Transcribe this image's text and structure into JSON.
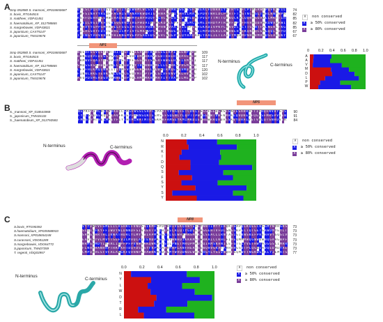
{
  "colors": {
    "blue": "#1a1ae6",
    "purple": "#7a3d9a",
    "lightblue": "#4ea7e6",
    "white": "#ffffff",
    "red": "#cc1010",
    "green": "#1fb21f",
    "tag": "#f2957a"
  },
  "panels": [
    {
      "letter": "A",
      "seq_names_top": [
        "Smp 052880 S. mansoni_XP018650687",
        "S. bovis_RTG84515",
        "S. mattheei_VDP41451",
        "S. haematobium_XP_012798865",
        "S. margrebowiei_VDP43821",
        "S. japonicum_CAX75147",
        "S. japonicum_TNN19676"
      ],
      "seq_nums_top": [
        "74",
        "82",
        "85",
        "82",
        "85",
        "67",
        "67"
      ],
      "seq_names_bot": [
        "Smp 052880 S. mansoni_XP018650687",
        "S. bovis_RTG84515",
        "S. mattheei_VDP41451",
        "S. haematobium_XP_012798865",
        "S. margrebowiei_VDP43821",
        "S. japonicum_CAX75147",
        "S. japonicum_TNN19676"
      ],
      "seq_nums_bot": [
        "109",
        "117",
        "117",
        "117",
        "120",
        "102",
        "102"
      ],
      "np_tag": "NP1",
      "n_terminus": "N-terminus",
      "c_terminus": "C-terminus",
      "logo_ticks": [
        "0",
        "0.2",
        "0.4",
        "0.6",
        "0.8",
        "1.0"
      ],
      "logo_residues": [
        "A",
        "A",
        "V",
        "M",
        "D",
        "L",
        "P",
        "W"
      ]
    },
    {
      "letter": "B",
      "seq_names": [
        "S._mansoni_XP_018644969",
        "S._japonicum_TNN15132",
        "S._haematobium_XP_012792582"
      ],
      "seq_nums": [
        "90",
        "91",
        "84"
      ],
      "np_tag": "NP5",
      "n_terminus": "N-terminus",
      "c_terminus": "C-terminus",
      "logo_ticks": [
        "0.0",
        "0.2",
        "0.4",
        "0.6",
        "0.8",
        "1.0"
      ],
      "logo_residues": [
        "N",
        "R",
        "K",
        "I",
        "D",
        "Q",
        "S",
        "F",
        "S",
        "Y",
        "S",
        "Y"
      ]
    },
    {
      "letter": "C",
      "seq_names": [
        "S.bovis_RTG90392",
        "S.haematobium_XP035588933",
        "S.mansoni_XP018654248",
        "S.curassoni_VDO81289",
        "S.margrebowiei_VDO64772",
        "S.japonicum_TNN07359",
        "T. regenti_VDQ03957"
      ],
      "seq_nums": [
        "73",
        "73",
        "73",
        "73",
        "73",
        "73",
        "77"
      ],
      "np_tag": "NP8",
      "n_terminus": "N-terminus",
      "c_terminus": "C-terminus",
      "logo_ticks": [
        "0.0",
        "0.2",
        "0.4",
        "0.6",
        "0.8",
        "1.0"
      ],
      "logo_residues": [
        "N",
        "Y",
        "L",
        "W",
        "D",
        "T",
        "R",
        "L"
      ]
    }
  ],
  "legend": {
    "non": "non conserved",
    "c50": "≥ 50% conserved",
    "c80": "≥ 80% conserved",
    "glyph": "A"
  }
}
